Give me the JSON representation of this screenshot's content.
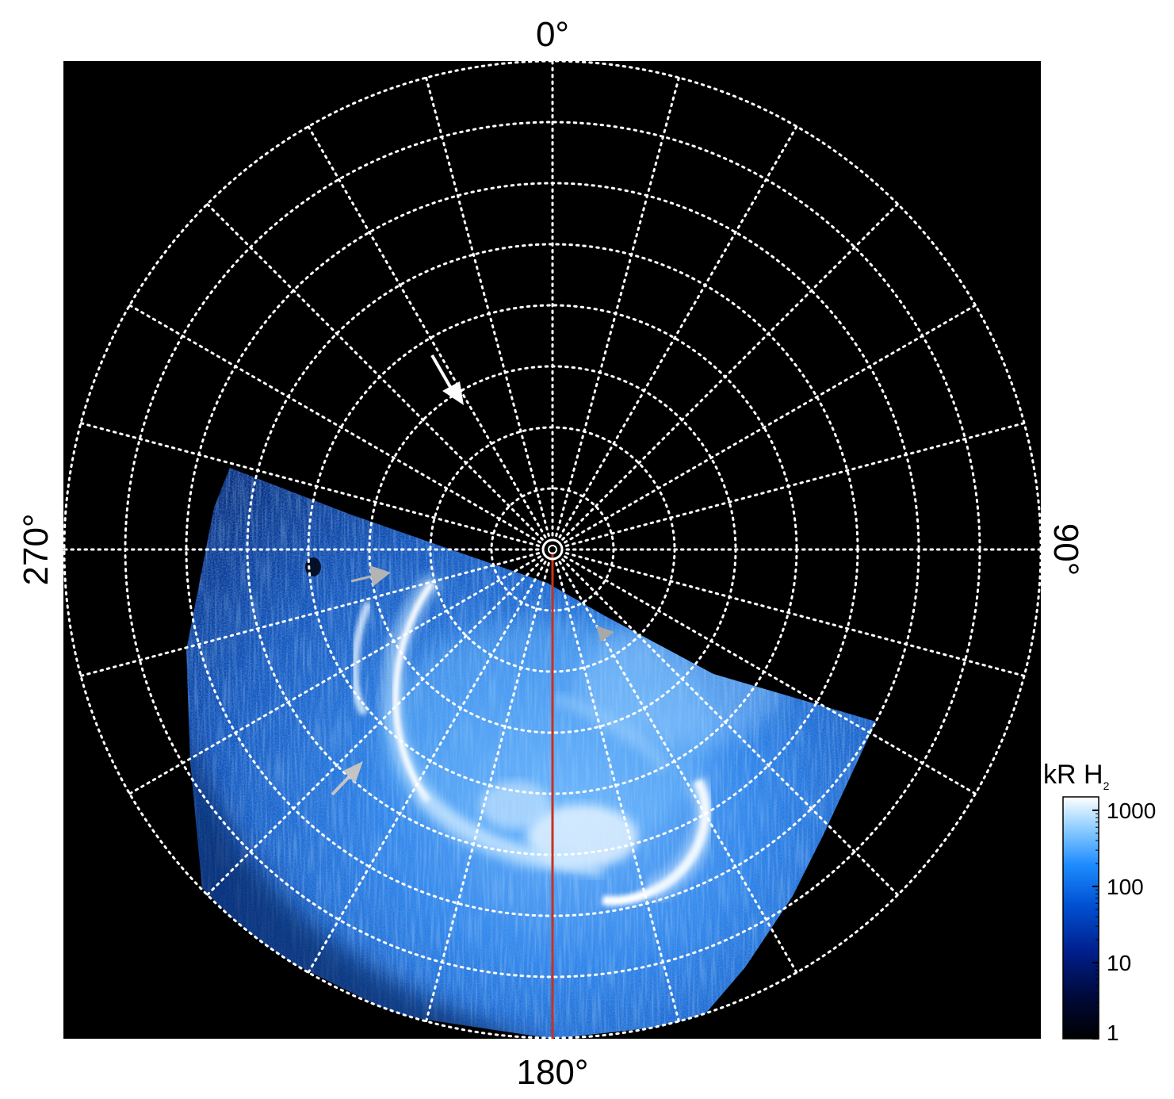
{
  "labels": {
    "north": "0°",
    "east": "90°",
    "south": "180°",
    "west": "270°"
  },
  "colorbar": {
    "title_main": "kR H",
    "title_sub": "2",
    "ticks": [
      {
        "label": "1000",
        "value": 1000
      },
      {
        "label": "100",
        "value": 100
      },
      {
        "label": "10",
        "value": 10
      },
      {
        "label": "1",
        "value": 1
      }
    ],
    "range": [
      1,
      1500
    ],
    "scale": "log",
    "colors": [
      "#000000",
      "#000a3c",
      "#001e8c",
      "#0050d2",
      "#1e8cff",
      "#96d2ff",
      "#ffffff"
    ]
  },
  "colors": {
    "background": "#000000",
    "grid": "#ffffff",
    "meridian_line": "#c8321e",
    "arrow_white": "#ffffff",
    "arrow_grey": "#b4b4b4"
  },
  "grid": {
    "parallels": 8,
    "meridians_deg": 15,
    "style": "dotted"
  },
  "icons": {
    "pole": "pole-marker-icon",
    "arrows": [
      "arrow-white-icon",
      "arrow-grey-icon"
    ]
  }
}
